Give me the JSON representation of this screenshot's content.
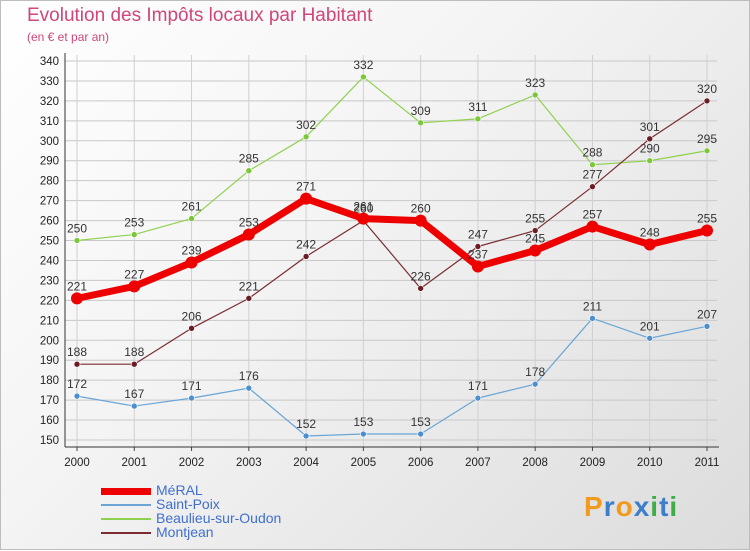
{
  "title": "Evolution des Impôts locaux par Habitant",
  "subtitle": "(en € et par an)",
  "logo": {
    "text": "Proxiti",
    "colors": [
      "#f29a1d",
      "#3b7ec9",
      "#f29a1d",
      "#3b7ec9",
      "#3fae49",
      "#3b7ec9",
      "#3fae49"
    ]
  },
  "chart_data": {
    "type": "line",
    "title": "Evolution des Impôts locaux par Habitant",
    "subtitle": "(en € et par an)",
    "xlabel": "",
    "ylabel": "",
    "categories": [
      "2000",
      "2001",
      "2002",
      "2003",
      "2004",
      "2005",
      "2006",
      "2007",
      "2008",
      "2009",
      "2010",
      "2011"
    ],
    "ylim": [
      150,
      340
    ],
    "yticks": [
      150,
      160,
      170,
      180,
      190,
      200,
      210,
      220,
      230,
      240,
      250,
      260,
      270,
      280,
      290,
      300,
      310,
      320,
      330,
      340
    ],
    "grid": true,
    "legend_position": "bottom-left",
    "series": [
      {
        "name": "Beaulieu-sur-Oudon",
        "color": "#8fd14f",
        "point_color": "#7cc63a",
        "width": 1.2,
        "marker": 3,
        "values": [
          250,
          253,
          261,
          285,
          302,
          332,
          309,
          311,
          323,
          288,
          290,
          295
        ]
      },
      {
        "name": "Saint-Poix",
        "color": "#6aa5d6",
        "point_color": "#4d8fce",
        "width": 1.2,
        "marker": 3,
        "values": [
          172,
          167,
          171,
          176,
          152,
          153,
          153,
          171,
          178,
          211,
          201,
          207
        ]
      },
      {
        "name": "Montjean",
        "color": "#7a2c32",
        "point_color": "#6a1d24",
        "width": 1.2,
        "marker": 3,
        "values": [
          188,
          188,
          206,
          221,
          242,
          260,
          226,
          247,
          255,
          277,
          301,
          320
        ]
      },
      {
        "name": "MéRAL",
        "color": "#ee0000",
        "point_color": "#ee0000",
        "width": 7,
        "marker": 6,
        "values": [
          221,
          227,
          239,
          253,
          271,
          261,
          260,
          237,
          245,
          257,
          248,
          255
        ]
      }
    ],
    "legend": [
      {
        "name": "MéRAL",
        "color": "#ee0000",
        "width": 7
      },
      {
        "name": "Saint-Poix",
        "color": "#6aa5d6",
        "width": 2
      },
      {
        "name": "Beaulieu-sur-Oudon",
        "color": "#8fd14f",
        "width": 2
      },
      {
        "name": "Montjean",
        "color": "#7a2c32",
        "width": 2
      }
    ]
  }
}
